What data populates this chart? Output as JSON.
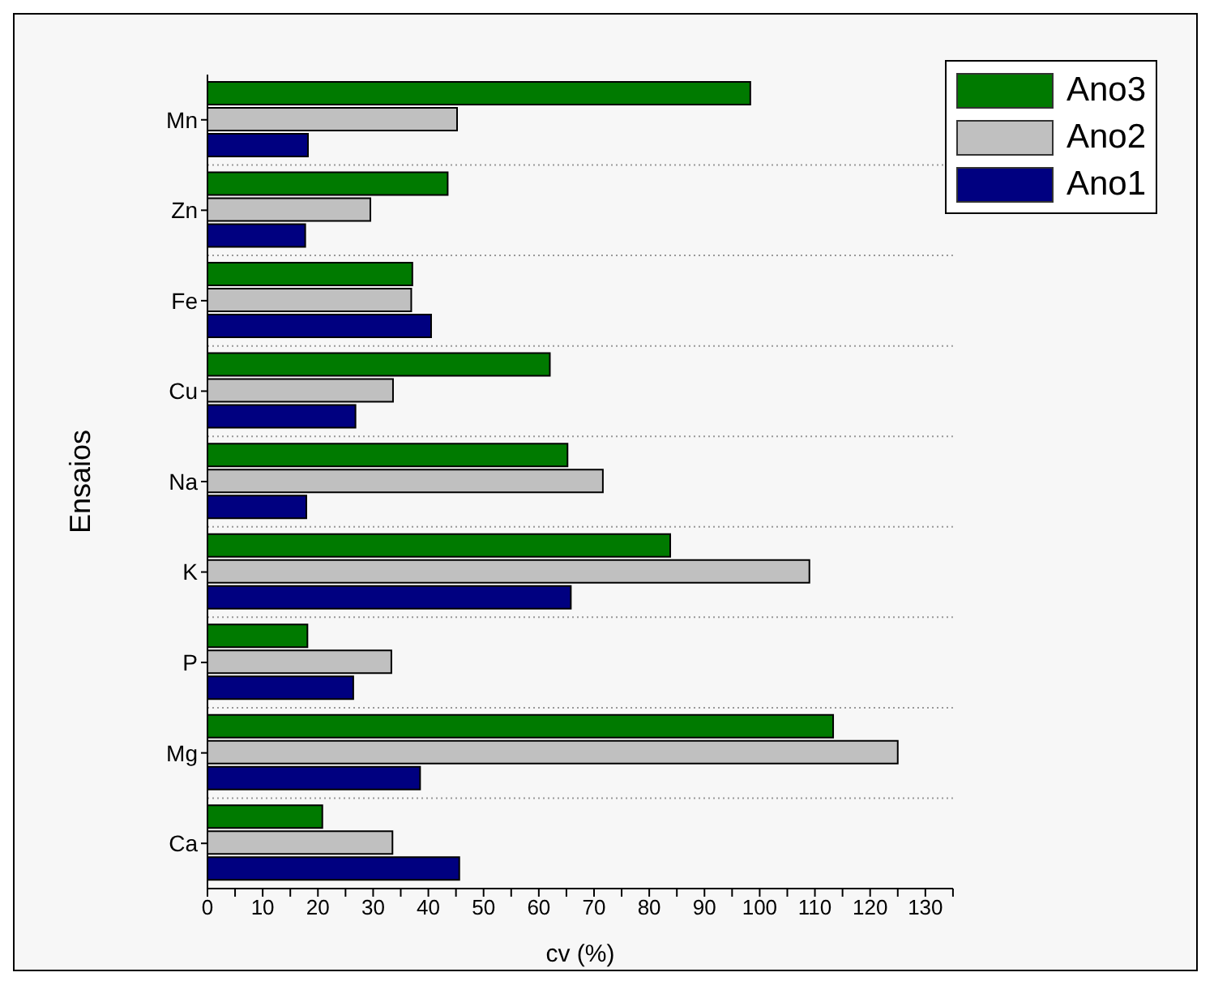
{
  "chart_data": {
    "type": "bar",
    "orientation": "horizontal",
    "xlabel": "cv (%)",
    "ylabel": "Ensaios",
    "categories": [
      "Mn",
      "Zn",
      "Fe",
      "Cu",
      "Na",
      "K",
      "P",
      "Mg",
      "Ca"
    ],
    "series": [
      {
        "name": "Ano3",
        "color": "#007a00",
        "values": [
          98.3,
          43.5,
          37.1,
          62,
          65.2,
          83.8,
          18.1,
          113.3,
          20.8
        ]
      },
      {
        "name": "Ano2",
        "color": "#c0c0c0",
        "values": [
          45.2,
          29.5,
          36.9,
          33.6,
          71.6,
          109,
          33.3,
          125,
          33.5
        ]
      },
      {
        "name": "Ano1",
        "color": "#000080",
        "values": [
          18.2,
          17.7,
          40.5,
          26.8,
          17.9,
          65.8,
          26.4,
          38.5,
          45.6
        ]
      }
    ],
    "xlim": [
      0,
      135
    ],
    "xticks": [
      0,
      {
        "value": 5,
        "label": null
      },
      10,
      {
        "value": 15,
        "label": null
      },
      20,
      {
        "value": 25,
        "label": null
      },
      30,
      {
        "value": 35,
        "label": null
      },
      40,
      {
        "value": 45,
        "label": null
      },
      50,
      {
        "value": 55,
        "label": null
      },
      60,
      {
        "value": 65,
        "label": null
      },
      70,
      {
        "value": 75,
        "label": null
      },
      80,
      {
        "value": 85,
        "label": null
      },
      90,
      {
        "value": 95,
        "label": null
      },
      100,
      {
        "value": 105,
        "label": null
      },
      110,
      {
        "value": 115,
        "label": null
      },
      120,
      {
        "value": 125,
        "label": null
      },
      130,
      {
        "value": 135,
        "label": null
      }
    ],
    "grid": "y",
    "legend": "top right"
  }
}
